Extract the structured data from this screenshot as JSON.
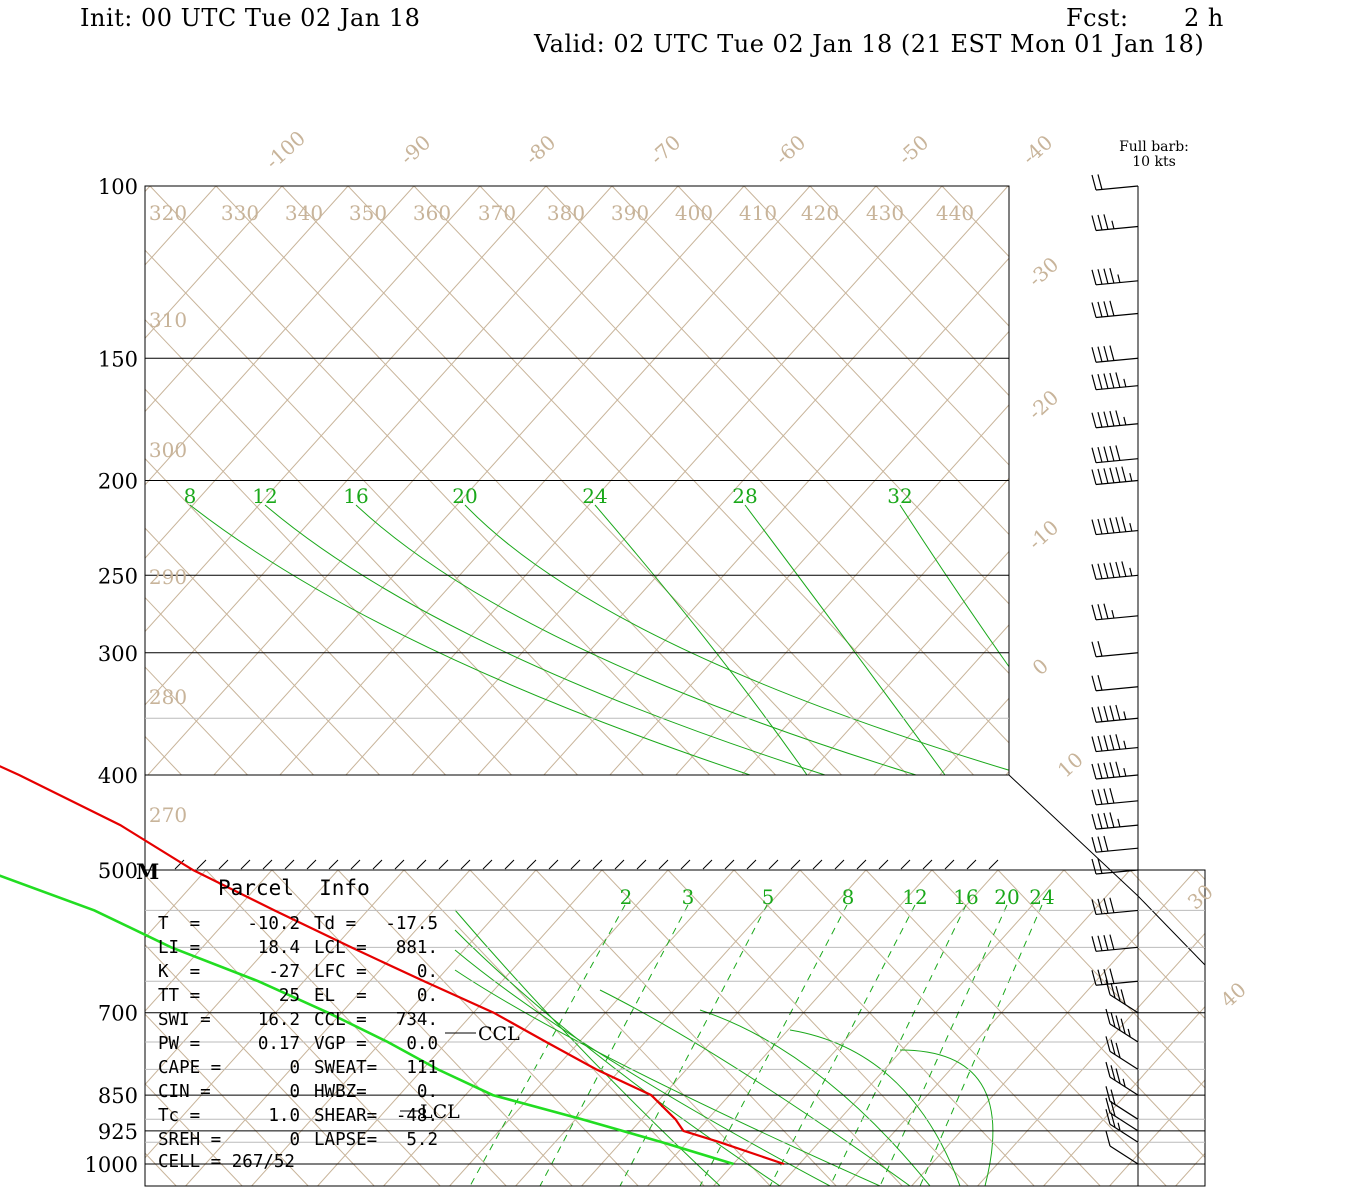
{
  "header": {
    "init": "Init: 00 UTC Tue 02 Jan 18",
    "fcst_label": "Fcst:",
    "fcst_value": "2 h",
    "valid": "Valid: 02 UTC Tue 02 Jan 18 (21 EST Mon 01 Jan 18)"
  },
  "chart_data": {
    "type": "skew-t",
    "pressure_levels": [
      100,
      150,
      200,
      250,
      300,
      400,
      500,
      700,
      850,
      925,
      1000
    ],
    "pressure_labels": [
      "100",
      "150",
      "200",
      "250",
      "300",
      "400",
      "500",
      "700",
      "850",
      "925",
      "1000"
    ],
    "isotherm_labels": [
      "-100",
      "-90",
      "-80",
      "-70",
      "-60",
      "-50",
      "-40",
      "-30",
      "-20",
      "-10",
      "0",
      "10",
      "30",
      "40"
    ],
    "theta_labels": [
      "320",
      "330",
      "340",
      "350",
      "360",
      "370",
      "380",
      "390",
      "400",
      "410",
      "420",
      "430",
      "440",
      "310",
      "300",
      "290",
      "280",
      "270"
    ],
    "mixing_ratio_labels_upper": [
      "8",
      "12",
      "16",
      "20",
      "24",
      "28",
      "32"
    ],
    "mixing_ratio_labels_lower": [
      "2",
      "3",
      "5",
      "8",
      "12",
      "16",
      "20",
      "24"
    ],
    "temperature_profile": [
      {
        "p": 100,
        "t": -48
      },
      {
        "p": 110,
        "t": -49
      },
      {
        "p": 125,
        "t": -50
      },
      {
        "p": 150,
        "t": -51
      },
      {
        "p": 175,
        "t": -51
      },
      {
        "p": 200,
        "t": -51
      },
      {
        "p": 225,
        "t": -51
      },
      {
        "p": 250,
        "t": -50
      },
      {
        "p": 300,
        "t": -45
      },
      {
        "p": 350,
        "t": -39
      },
      {
        "p": 400,
        "t": -32
      },
      {
        "p": 450,
        "t": -27
      },
      {
        "p": 500,
        "t": -25
      },
      {
        "p": 550,
        "t": -21
      },
      {
        "p": 600,
        "t": -17
      },
      {
        "p": 650,
        "t": -13
      },
      {
        "p": 700,
        "t": -9
      },
      {
        "p": 750,
        "t": -7
      },
      {
        "p": 800,
        "t": -5
      },
      {
        "p": 850,
        "t": -2
      },
      {
        "p": 900,
        "t": -3
      },
      {
        "p": 925,
        "t": -4
      },
      {
        "p": 950,
        "t": -1
      },
      {
        "p": 1000,
        "t": 4
      }
    ],
    "dewpoint_profile": [
      {
        "p": 100,
        "t": -76
      },
      {
        "p": 125,
        "t": -78
      },
      {
        "p": 150,
        "t": -80
      },
      {
        "p": 175,
        "t": -81
      },
      {
        "p": 190,
        "t": -83
      },
      {
        "p": 200,
        "t": -84
      },
      {
        "p": 225,
        "t": -80
      },
      {
        "p": 250,
        "t": -75
      },
      {
        "p": 300,
        "t": -71
      },
      {
        "p": 350,
        "t": -71
      },
      {
        "p": 400,
        "t": -72
      },
      {
        "p": 420,
        "t": -74
      },
      {
        "p": 450,
        "t": -64
      },
      {
        "p": 500,
        "t": -54
      },
      {
        "p": 550,
        "t": -46
      },
      {
        "p": 600,
        "t": -42
      },
      {
        "p": 650,
        "t": -36
      },
      {
        "p": 700,
        "t": -32
      },
      {
        "p": 750,
        "t": -29
      },
      {
        "p": 800,
        "t": -27
      },
      {
        "p": 850,
        "t": -24
      },
      {
        "p": 900,
        "t": -16
      },
      {
        "p": 950,
        "t": -9
      },
      {
        "p": 1000,
        "t": -3
      }
    ],
    "ccl_label": "CCL",
    "lcl_label": "LCL",
    "marker_500": "M",
    "wind_header_1": "Full barb:",
    "wind_header_2": "10 kts",
    "wind_barbs": [
      {
        "p": 100,
        "kts": 20
      },
      {
        "p": 110,
        "kts": 25
      },
      {
        "p": 125,
        "kts": 35
      },
      {
        "p": 135,
        "kts": 40
      },
      {
        "p": 150,
        "kts": 40
      },
      {
        "p": 160,
        "kts": 45
      },
      {
        "p": 175,
        "kts": 45
      },
      {
        "p": 190,
        "kts": 50
      },
      {
        "p": 200,
        "kts": 55
      },
      {
        "p": 225,
        "kts": 55
      },
      {
        "p": 250,
        "kts": 55
      },
      {
        "p": 275,
        "kts": 25
      },
      {
        "p": 300,
        "kts": 20
      },
      {
        "p": 325,
        "kts": 20
      },
      {
        "p": 350,
        "kts": 45
      },
      {
        "p": 375,
        "kts": 45
      },
      {
        "p": 400,
        "kts": 45
      },
      {
        "p": 425,
        "kts": 40
      },
      {
        "p": 450,
        "kts": 35
      },
      {
        "p": 475,
        "kts": 30
      },
      {
        "p": 500,
        "kts": 20
      },
      {
        "p": 550,
        "kts": 40
      },
      {
        "p": 600,
        "kts": 40
      },
      {
        "p": 650,
        "kts": 40
      },
      {
        "p": 700,
        "kts": 40
      },
      {
        "p": 750,
        "kts": 35
      },
      {
        "p": 800,
        "kts": 30
      },
      {
        "p": 850,
        "kts": 25
      },
      {
        "p": 900,
        "kts": 20
      },
      {
        "p": 925,
        "kts": 20
      },
      {
        "p": 950,
        "kts": 15
      },
      {
        "p": 1000,
        "kts": 10
      }
    ]
  },
  "parcel": {
    "title": "Parcel  Info",
    "rows": [
      {
        "l": "T  =",
        "v": "-10.2",
        "l2": "Td =",
        "v2": "-17.5"
      },
      {
        "l": "LI =",
        "v": "18.4",
        "l2": "LCL =",
        "v2": "881."
      },
      {
        "l": "K  =",
        "v": "-27",
        "l2": "LFC =",
        "v2": "0."
      },
      {
        "l": "TT =",
        "v": "25",
        "l2": "EL  =",
        "v2": "0."
      },
      {
        "l": "SWI =",
        "v": "16.2",
        "l2": "CCL =",
        "v2": "734."
      },
      {
        "l": "PW =",
        "v": "0.17",
        "l2": "VGP =",
        "v2": "0.0"
      },
      {
        "l": "CAPE =",
        "v": "0",
        "l2": "SWEAT=",
        "v2": "111"
      },
      {
        "l": "CIN =",
        "v": "0",
        "l2": "HWBZ=",
        "v2": "0."
      },
      {
        "l": "Tc =",
        "v": "1.0",
        "l2": "SHEAR=",
        "v2": "-48."
      },
      {
        "l": "SREH =",
        "v": "0",
        "l2": "LAPSE=",
        "v2": "5.2"
      }
    ],
    "cell": "CELL = 267/52"
  },
  "colors": {
    "temperature": "#e60000",
    "dewpoint": "#22dd22",
    "isotherm": "#c8b49a",
    "mixing": "#1aa81a",
    "isobar": "#000000",
    "grid_light": "#bbbbbb"
  }
}
